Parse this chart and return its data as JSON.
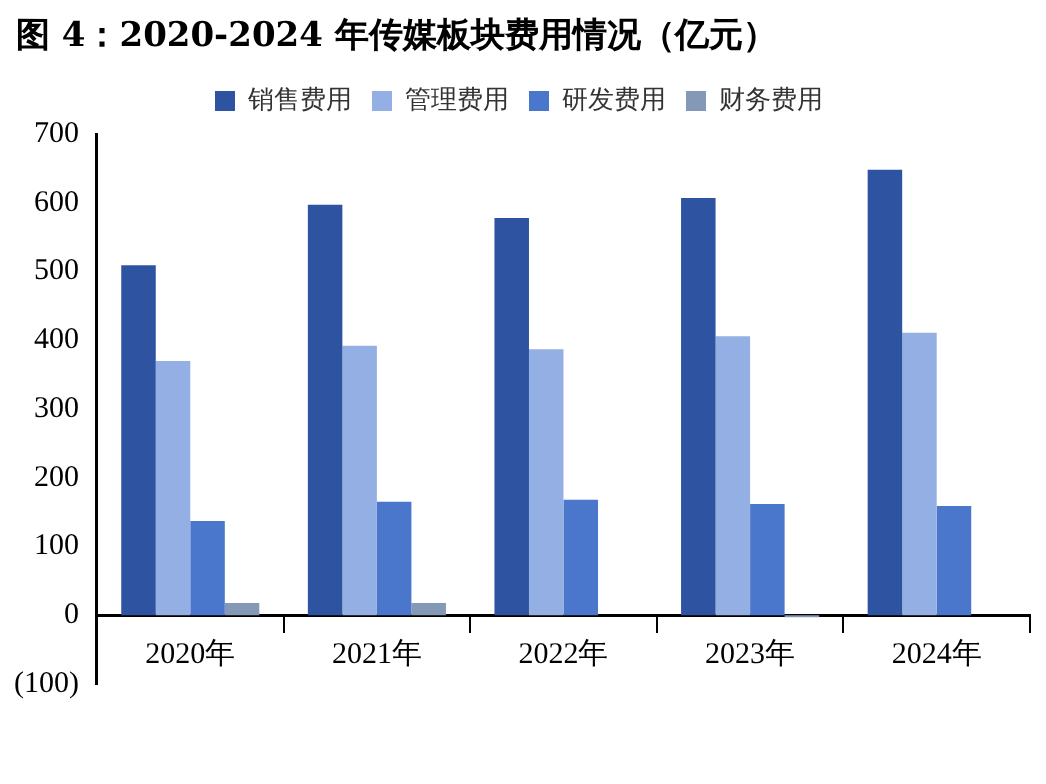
{
  "chart_data": {
    "type": "bar",
    "title": "图 4：2020-2024 年传媒板块费用情况（亿元）",
    "categories": [
      "2020年",
      "2021年",
      "2022年",
      "2023年",
      "2024年"
    ],
    "series": [
      {
        "name": "销售费用",
        "color": "#2e54a1",
        "values": [
          509,
          597,
          578,
          607,
          648
        ]
      },
      {
        "name": "管理费用",
        "color": "#94afe3",
        "values": [
          370,
          392,
          387,
          406,
          411
        ]
      },
      {
        "name": "研发费用",
        "color": "#4a76cc",
        "values": [
          137,
          165,
          168,
          162,
          159
        ]
      },
      {
        "name": "财务费用",
        "color": "#8499b5",
        "values": [
          18,
          18,
          null,
          -3,
          null
        ]
      }
    ],
    "ylim": [
      -100,
      700
    ],
    "yticks": [
      {
        "value": -100,
        "label": "(100)"
      },
      0,
      100,
      200,
      300,
      400,
      500,
      600,
      700
    ],
    "grid": false,
    "legend": "top"
  }
}
